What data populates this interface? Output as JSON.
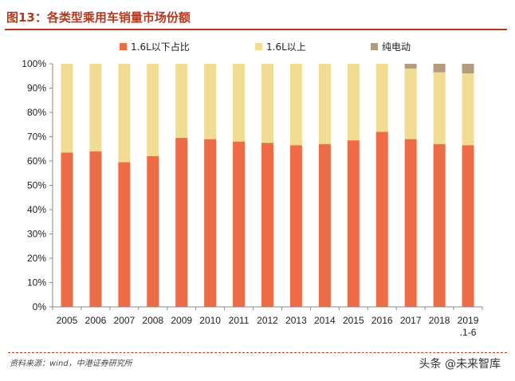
{
  "title": "图13：各类型乘用车销量市场份额",
  "source": "资料来源：wind，中港证券研究所",
  "watermark": "头条 @未来智库",
  "colors": {
    "small": "#ee6c45",
    "large": "#f2dc93",
    "ev": "#b39b7f",
    "accent": "#b5391e"
  },
  "chart_data": {
    "type": "bar",
    "stacked": true,
    "categories": [
      "2005",
      "2006",
      "2007",
      "2008",
      "2009",
      "2010",
      "2011",
      "2012",
      "2013",
      "2014",
      "2015",
      "2016",
      "2017",
      "2018",
      "2019"
    ],
    "category_sublabels": [
      "",
      "",
      "",
      "",
      "",
      "",
      "",
      "",
      "",
      "",
      "",
      "",
      "",
      "",
      ".1-6"
    ],
    "series": [
      {
        "name": "1.6L以下占比",
        "values": [
          63.5,
          64,
          59.5,
          62,
          69.5,
          69,
          68,
          67.5,
          66.5,
          67,
          68.5,
          72,
          69,
          67,
          66.5
        ]
      },
      {
        "name": "1.6L以上",
        "values": [
          36.5,
          36,
          40.5,
          38,
          30.5,
          31,
          32,
          32.5,
          33.5,
          33,
          31.5,
          28,
          29,
          29.5,
          29.5
        ]
      },
      {
        "name": "纯电动",
        "values": [
          0,
          0,
          0,
          0,
          0,
          0,
          0,
          0,
          0,
          0,
          0,
          0,
          2,
          3.5,
          4
        ]
      }
    ],
    "ylim": [
      0,
      100
    ],
    "yticks": [
      "0%",
      "10%",
      "20%",
      "30%",
      "40%",
      "50%",
      "60%",
      "70%",
      "80%",
      "90%",
      "100%"
    ],
    "grid": false,
    "legend_position": "top"
  }
}
